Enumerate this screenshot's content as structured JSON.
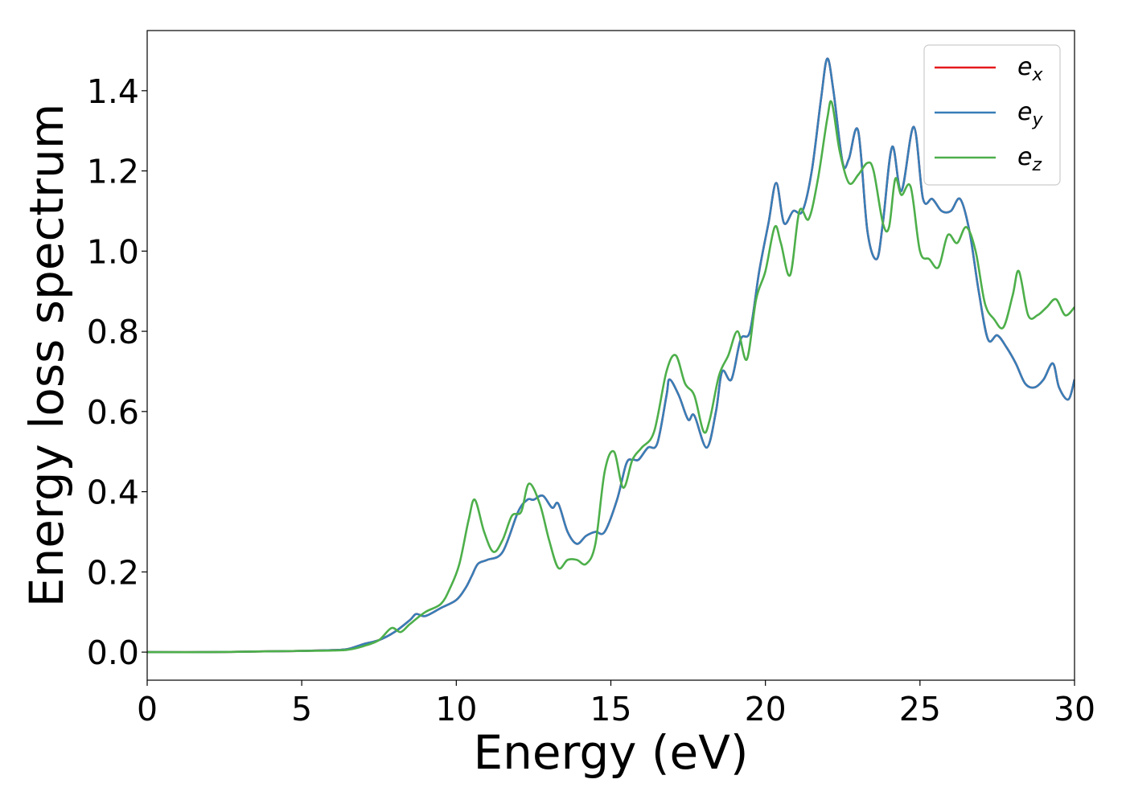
{
  "chart_data": {
    "type": "line",
    "title": "",
    "xlabel": "Energy (eV)",
    "ylabel": "Energy loss spectrum",
    "xlim": [
      0,
      30
    ],
    "ylim": [
      -0.07,
      1.55
    ],
    "xticks": [
      0,
      5,
      10,
      15,
      20,
      25,
      30
    ],
    "xtick_labels": [
      "0",
      "5",
      "10",
      "15",
      "20",
      "25",
      "30"
    ],
    "yticks": [
      0.0,
      0.2,
      0.4,
      0.6,
      0.8,
      1.0,
      1.2,
      1.4
    ],
    "ytick_labels": [
      "0.0",
      "0.2",
      "0.4",
      "0.6",
      "0.8",
      "1.0",
      "1.2",
      "1.4"
    ],
    "grid": false,
    "legend_position": "top-right",
    "series": [
      {
        "name": "e_x",
        "label_base": "e",
        "label_sub": "x",
        "color": "#e41a1c",
        "x": [
          0,
          2,
          4,
          5,
          6,
          6.5,
          7,
          7.5,
          8,
          8.5,
          8.7,
          9,
          9.5,
          10,
          10.3,
          10.5,
          10.7,
          11,
          11.5,
          12,
          12.3,
          12.5,
          12.8,
          13.1,
          13.3,
          13.6,
          13.9,
          14.2,
          14.5,
          14.8,
          15.2,
          15.5,
          15.7,
          15.9,
          16.2,
          16.5,
          16.8,
          16.9,
          17.2,
          17.5,
          17.7,
          18.1,
          18.4,
          18.6,
          18.9,
          19.2,
          19.5,
          19.8,
          20.1,
          20.35,
          20.6,
          20.9,
          21.2,
          21.5,
          21.8,
          22.0,
          22.2,
          22.5,
          22.7,
          23.0,
          23.3,
          23.6,
          23.8,
          24.1,
          24.4,
          24.8,
          25.1,
          25.4,
          25.7,
          26.0,
          26.3,
          26.6,
          26.9,
          27.2,
          27.5,
          27.8,
          28.1,
          28.4,
          28.7,
          29.0,
          29.3,
          29.5,
          29.8,
          30.0
        ],
        "y": [
          0.0,
          0.0,
          0.002,
          0.003,
          0.005,
          0.008,
          0.02,
          0.03,
          0.05,
          0.08,
          0.095,
          0.09,
          0.11,
          0.13,
          0.16,
          0.19,
          0.22,
          0.23,
          0.25,
          0.35,
          0.38,
          0.38,
          0.39,
          0.36,
          0.37,
          0.3,
          0.27,
          0.29,
          0.3,
          0.3,
          0.38,
          0.47,
          0.48,
          0.48,
          0.51,
          0.52,
          0.64,
          0.68,
          0.64,
          0.58,
          0.59,
          0.51,
          0.6,
          0.7,
          0.68,
          0.78,
          0.8,
          0.95,
          1.07,
          1.17,
          1.07,
          1.1,
          1.1,
          1.2,
          1.38,
          1.48,
          1.4,
          1.22,
          1.23,
          1.3,
          1.05,
          0.98,
          1.07,
          1.26,
          1.15,
          1.31,
          1.13,
          1.13,
          1.1,
          1.1,
          1.13,
          1.05,
          0.9,
          0.78,
          0.79,
          0.76,
          0.72,
          0.67,
          0.66,
          0.68,
          0.72,
          0.66,
          0.63,
          0.68
        ]
      },
      {
        "name": "e_y",
        "label_base": "e",
        "label_sub": "y",
        "color": "#377eb8",
        "x": [
          0,
          2,
          4,
          5,
          6,
          6.5,
          7,
          7.5,
          8,
          8.5,
          8.7,
          9,
          9.5,
          10,
          10.3,
          10.5,
          10.7,
          11,
          11.5,
          12,
          12.3,
          12.5,
          12.8,
          13.1,
          13.3,
          13.6,
          13.9,
          14.2,
          14.5,
          14.8,
          15.2,
          15.5,
          15.7,
          15.9,
          16.2,
          16.5,
          16.8,
          16.9,
          17.2,
          17.5,
          17.7,
          18.1,
          18.4,
          18.6,
          18.9,
          19.2,
          19.5,
          19.8,
          20.1,
          20.35,
          20.6,
          20.9,
          21.2,
          21.5,
          21.8,
          22.0,
          22.2,
          22.5,
          22.7,
          23.0,
          23.3,
          23.6,
          23.8,
          24.1,
          24.4,
          24.8,
          25.1,
          25.4,
          25.7,
          26.0,
          26.3,
          26.6,
          26.9,
          27.2,
          27.5,
          27.8,
          28.1,
          28.4,
          28.7,
          29.0,
          29.3,
          29.5,
          29.8,
          30.0
        ],
        "y": [
          0.0,
          0.0,
          0.002,
          0.003,
          0.005,
          0.008,
          0.02,
          0.03,
          0.05,
          0.08,
          0.095,
          0.09,
          0.11,
          0.13,
          0.16,
          0.19,
          0.22,
          0.23,
          0.25,
          0.35,
          0.38,
          0.38,
          0.39,
          0.36,
          0.37,
          0.3,
          0.27,
          0.29,
          0.3,
          0.3,
          0.38,
          0.47,
          0.48,
          0.48,
          0.51,
          0.52,
          0.64,
          0.68,
          0.64,
          0.58,
          0.59,
          0.51,
          0.6,
          0.7,
          0.68,
          0.78,
          0.8,
          0.95,
          1.07,
          1.17,
          1.07,
          1.1,
          1.1,
          1.2,
          1.38,
          1.48,
          1.4,
          1.22,
          1.23,
          1.3,
          1.05,
          0.98,
          1.07,
          1.26,
          1.15,
          1.31,
          1.13,
          1.13,
          1.1,
          1.1,
          1.13,
          1.05,
          0.9,
          0.78,
          0.79,
          0.76,
          0.72,
          0.67,
          0.66,
          0.68,
          0.72,
          0.66,
          0.63,
          0.68
        ]
      },
      {
        "name": "e_z",
        "label_base": "e",
        "label_sub": "z",
        "color": "#4daf4a",
        "x": [
          0,
          2,
          4,
          5,
          6,
          6.5,
          7,
          7.5,
          7.9,
          8.2,
          8.5,
          9,
          9.5,
          9.8,
          10.1,
          10.4,
          10.6,
          10.9,
          11.2,
          11.5,
          11.8,
          12.1,
          12.35,
          12.7,
          13.0,
          13.3,
          13.6,
          13.9,
          14.2,
          14.5,
          14.8,
          15.1,
          15.4,
          15.7,
          16.0,
          16.4,
          16.8,
          17.1,
          17.4,
          17.7,
          18.0,
          18.2,
          18.5,
          18.8,
          19.1,
          19.4,
          19.7,
          20.0,
          20.3,
          20.5,
          20.8,
          21.1,
          21.4,
          21.7,
          22.0,
          22.15,
          22.4,
          22.7,
          23.0,
          23.3,
          23.5,
          23.8,
          24.0,
          24.2,
          24.4,
          24.7,
          25.0,
          25.3,
          25.6,
          25.9,
          26.2,
          26.5,
          26.8,
          27.1,
          27.4,
          27.7,
          28.0,
          28.2,
          28.5,
          28.8,
          29.1,
          29.4,
          29.7,
          30.0
        ],
        "y": [
          0.0,
          0.0,
          0.002,
          0.003,
          0.004,
          0.006,
          0.015,
          0.03,
          0.06,
          0.05,
          0.07,
          0.1,
          0.12,
          0.16,
          0.22,
          0.33,
          0.38,
          0.3,
          0.25,
          0.28,
          0.34,
          0.35,
          0.42,
          0.37,
          0.28,
          0.21,
          0.23,
          0.23,
          0.22,
          0.27,
          0.45,
          0.5,
          0.41,
          0.48,
          0.51,
          0.55,
          0.7,
          0.74,
          0.67,
          0.64,
          0.55,
          0.58,
          0.69,
          0.74,
          0.8,
          0.73,
          0.88,
          0.95,
          1.06,
          1.02,
          0.94,
          1.1,
          1.08,
          1.18,
          1.33,
          1.37,
          1.25,
          1.17,
          1.19,
          1.22,
          1.2,
          1.07,
          1.06,
          1.18,
          1.14,
          1.16,
          1.0,
          0.98,
          0.96,
          1.04,
          1.02,
          1.06,
          1.0,
          0.87,
          0.83,
          0.81,
          0.89,
          0.95,
          0.84,
          0.84,
          0.86,
          0.88,
          0.84,
          0.86
        ]
      }
    ]
  }
}
